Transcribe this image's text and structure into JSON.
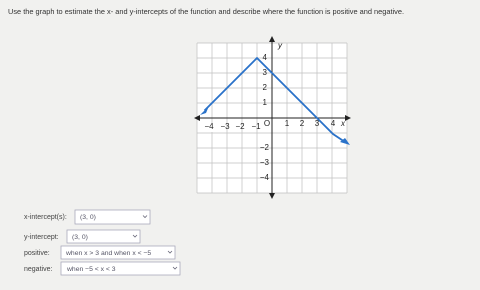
{
  "question": "Use the graph to estimate the x- and y-intercepts of the function and describe where the function is positive and negative.",
  "graph": {
    "x_labels": [
      "−4",
      "−3",
      "−2",
      "−1",
      "O",
      "1",
      "2",
      "3",
      "4",
      "x"
    ],
    "y_labels": [
      "y",
      "4",
      "3",
      "2",
      "1",
      "−2",
      "−3",
      "−4"
    ]
  },
  "answers": [
    {
      "label": "x-intercept(s):",
      "value": "(3, 0)"
    },
    {
      "label": "y-intercept:",
      "value": "(3, 0)"
    },
    {
      "label": "positive:",
      "value": "when x > 3 and when x < −5"
    },
    {
      "label": "negative:",
      "value": "when −5 < x < 3"
    }
  ]
}
